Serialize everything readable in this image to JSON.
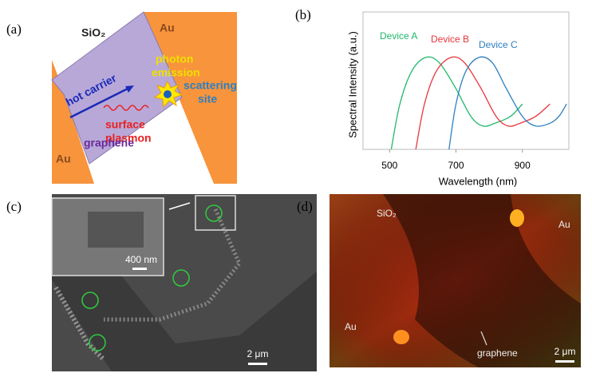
{
  "panels": {
    "a": {
      "label": "(a)",
      "sio2": "SiO₂",
      "au_top": "Au",
      "au_bottom": "Au",
      "photon": [
        "photon",
        "emission"
      ],
      "hot_carrier": "hot carrier",
      "plasmon": [
        "surface",
        "plasmon"
      ],
      "scattering": [
        "scattering",
        "site"
      ],
      "graphene": "graphene"
    },
    "b": {
      "label": "(b)"
    },
    "c": {
      "label": "(c)",
      "inset_scale": "400 nm",
      "scale": "2 μm"
    },
    "d": {
      "label": "(d)",
      "sio2": "SiO₂",
      "au_right": "Au",
      "au_left": "Au",
      "graphene": "graphene",
      "scale": "2 μm"
    }
  },
  "chart_data": {
    "type": "line",
    "x_label": "Wavelength (nm)",
    "y_label": "Spectral Intensity (a.u.)",
    "xlim": [
      420,
      1040
    ],
    "xticks": [
      500,
      700,
      900
    ],
    "ylim": [
      0,
      1
    ],
    "series": [
      {
        "name": "Device A",
        "color": "#1fb86a",
        "x": [
          505,
          531,
          567,
          610,
          650,
          698,
          745,
          781,
          817,
          864,
          900
        ],
        "values": [
          0,
          0.33,
          0.57,
          0.67,
          0.63,
          0.45,
          0.24,
          0.17,
          0.19,
          0.24,
          0.33
        ]
      },
      {
        "name": "Device B",
        "color": "#e8343c",
        "x": [
          579,
          605,
          641,
          686,
          726,
          774,
          821,
          857,
          893,
          940,
          983
        ],
        "values": [
          0,
          0.33,
          0.57,
          0.67,
          0.63,
          0.45,
          0.24,
          0.17,
          0.19,
          0.24,
          0.33
        ]
      },
      {
        "name": "Device C",
        "color": "#2e7fc0",
        "x": [
          679,
          700,
          730,
          770,
          810,
          850,
          900,
          940,
          983,
          1010,
          1033
        ],
        "values": [
          0,
          0.33,
          0.57,
          0.67,
          0.63,
          0.45,
          0.24,
          0.17,
          0.19,
          0.24,
          0.33
        ]
      }
    ]
  }
}
